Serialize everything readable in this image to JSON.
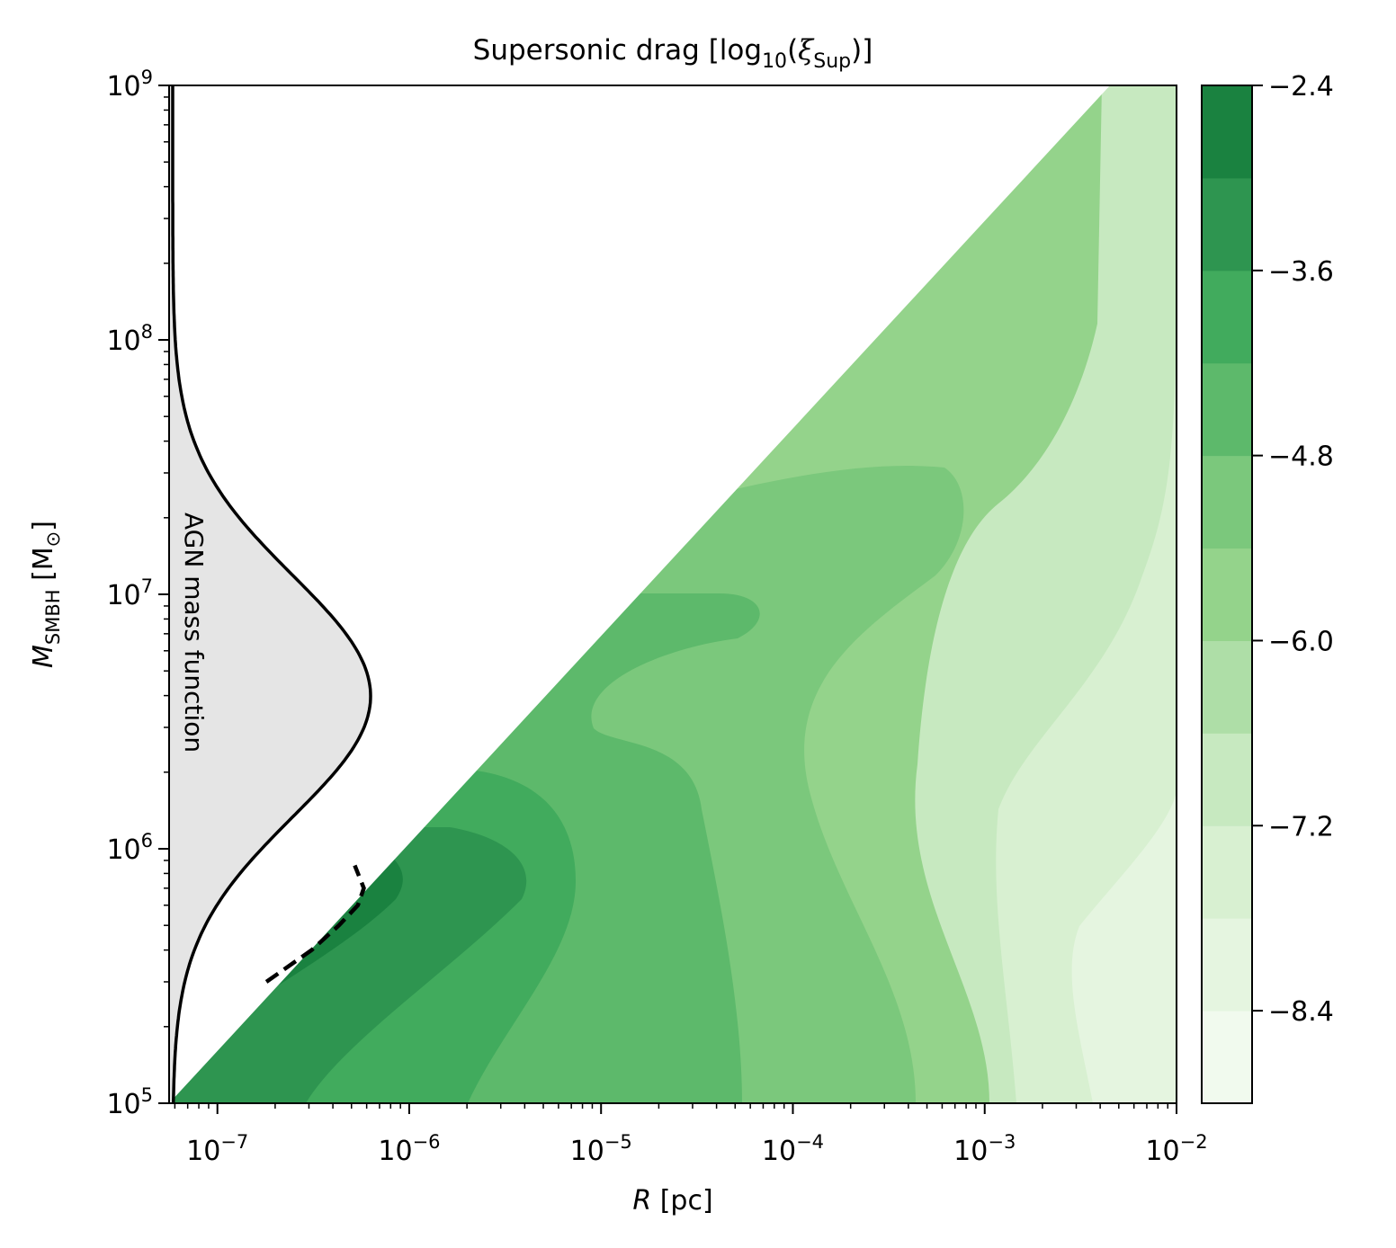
{
  "chart_data": {
    "type": "heatmap",
    "title": {
      "main": "Supersonic drag [log",
      "sub10": "10",
      "paren_open": "(",
      "xi": "ξ",
      "sub_sup": "Sup",
      "close": ")]"
    },
    "xlabel": {
      "var": "R",
      "unit": " [pc]"
    },
    "ylabel": {
      "var": "M",
      "sub": "SMBH",
      "unit_open": " [M",
      "sun": "⊙",
      "unit_close": "]"
    },
    "xscale": "log",
    "yscale": "log",
    "xlim": [
      5.6e-08,
      0.01
    ],
    "ylim": [
      100000,
      1000000000
    ],
    "x_ticks": [
      {
        "value": 1e-07,
        "base": "10",
        "exp": "−7"
      },
      {
        "value": 1e-06,
        "base": "10",
        "exp": "−6"
      },
      {
        "value": 1e-05,
        "base": "10",
        "exp": "−5"
      },
      {
        "value": 0.0001,
        "base": "10",
        "exp": "−4"
      },
      {
        "value": 0.001,
        "base": "10",
        "exp": "−3"
      },
      {
        "value": 0.01,
        "base": "10",
        "exp": "−2"
      }
    ],
    "y_ticks": [
      {
        "value": 100000,
        "base": "10",
        "exp": "5"
      },
      {
        "value": 1000000,
        "base": "10",
        "exp": "6"
      },
      {
        "value": 10000000,
        "base": "10",
        "exp": "7"
      },
      {
        "value": 100000000,
        "base": "10",
        "exp": "8"
      },
      {
        "value": 1000000000,
        "base": "10",
        "exp": "9"
      }
    ],
    "colorbar": {
      "min": -9.0,
      "max": -2.4,
      "levels": [
        -9.0,
        -8.4,
        -7.8,
        -7.2,
        -6.6,
        -6.0,
        -5.4,
        -4.8,
        -4.2,
        -3.6,
        -3.0,
        -2.4
      ],
      "colors": [
        "#f1faee",
        "#e5f5e0",
        "#d8f0d1",
        "#c7e9c0",
        "#aedea7",
        "#94d38b",
        "#7bc87c",
        "#5db96b",
        "#41ab5d",
        "#2e9550",
        "#1a8240"
      ],
      "ticks": [
        {
          "value": -2.4,
          "label": "−2.4"
        },
        {
          "value": -3.6,
          "label": "−3.6"
        },
        {
          "value": -4.8,
          "label": "−4.8"
        },
        {
          "value": -6.0,
          "label": "−6.0"
        },
        {
          "value": -7.2,
          "label": "−7.2"
        },
        {
          "value": -8.4,
          "label": "−8.4"
        }
      ]
    },
    "mass_function_label": "AGN mass function",
    "mass_function_peak_log10_mass": 6.6,
    "valid_region_lower_edge": [
      [
        5.6e-08,
        100000
      ],
      [
        0.0045,
        1000000000
      ]
    ],
    "dashed_contour": [
      [
        1.8e-07,
        300000
      ],
      [
        3.1e-07,
        400000
      ],
      [
        4.3e-07,
        500000
      ],
      [
        5.4e-07,
        600000
      ],
      [
        5.8e-07,
        700000
      ],
      [
        5.2e-07,
        860000
      ]
    ]
  }
}
